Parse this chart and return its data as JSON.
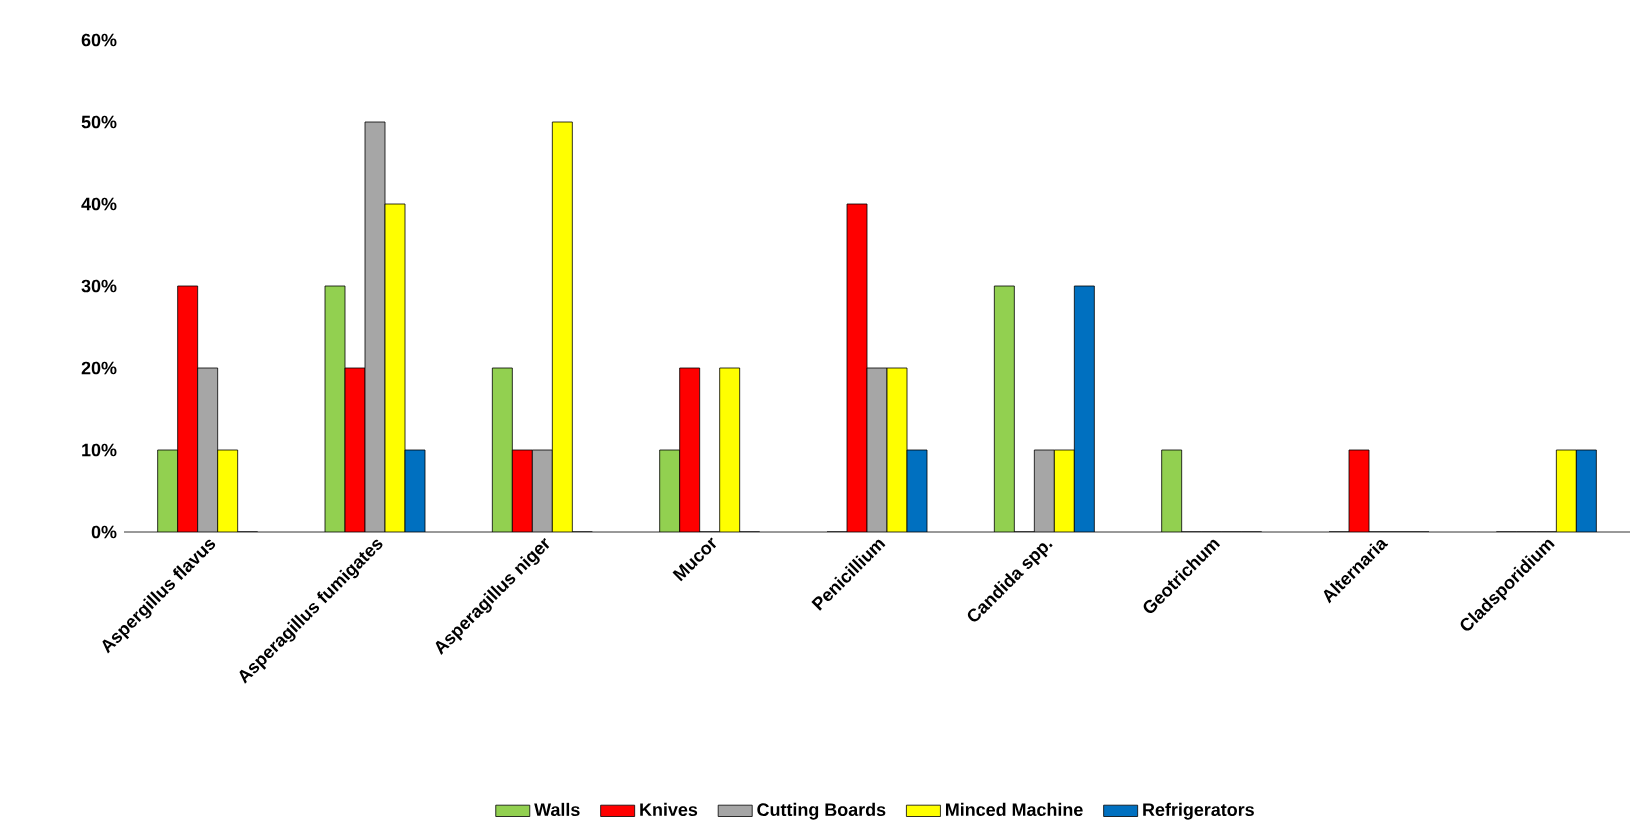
{
  "chart_data": {
    "type": "bar",
    "categories": [
      "Aspergillus flavus",
      "Asperagillus fumigates",
      "Asperagillus niger",
      "Mucor",
      "Penicillium",
      "Candida spp.",
      "Geotrichum",
      "Alternaria",
      "Cladsporidium"
    ],
    "series": [
      {
        "name": "Walls",
        "color": "#92d050",
        "values": [
          10,
          30,
          20,
          10,
          0,
          30,
          10,
          0,
          0
        ]
      },
      {
        "name": "Knives",
        "color": "#ff0000",
        "values": [
          30,
          20,
          10,
          20,
          40,
          0,
          0,
          10,
          0
        ]
      },
      {
        "name": "Cutting Boards",
        "color": "#a6a6a6",
        "values": [
          20,
          50,
          10,
          0,
          20,
          10,
          0,
          0,
          0
        ]
      },
      {
        "name": "Minced Machine",
        "color": "#ffff00",
        "values": [
          10,
          40,
          50,
          20,
          20,
          10,
          0,
          0,
          10
        ]
      },
      {
        "name": "Refrigerators",
        "color": "#0070c0",
        "values": [
          0,
          10,
          0,
          0,
          10,
          30,
          0,
          0,
          10
        ]
      }
    ],
    "ylim": [
      0,
      60
    ],
    "yticks": [
      {
        "value": 0,
        "label": "0%"
      },
      {
        "value": 10,
        "label": "10%"
      },
      {
        "value": 20,
        "label": "20%"
      },
      {
        "value": 30,
        "label": "30%"
      },
      {
        "value": 40,
        "label": "40%"
      },
      {
        "value": 50,
        "label": "50%"
      },
      {
        "value": 60,
        "label": "60%"
      }
    ],
    "grid": false,
    "legend": "bottom"
  }
}
